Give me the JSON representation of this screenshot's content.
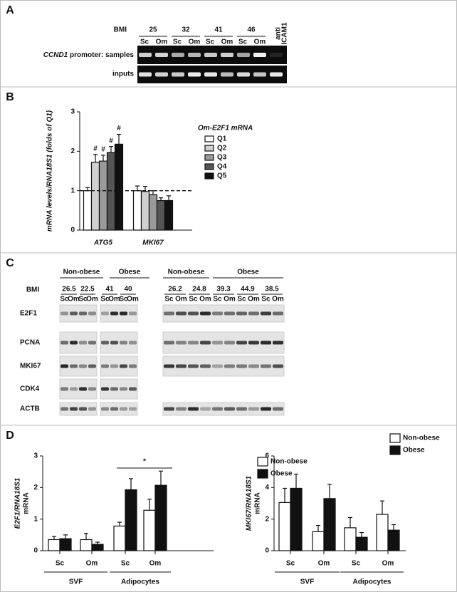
{
  "panel_a": {
    "label": "A",
    "bmi_label": "BMI",
    "bmi": [
      25,
      32,
      41,
      46
    ],
    "lanes": [
      "Sc",
      "Om",
      "Sc",
      "Om",
      "Sc",
      "Om",
      "Sc",
      "Om"
    ],
    "control": [
      "anti",
      "ICAM1"
    ],
    "row_gene": "CCND1",
    "row_label": " promoter: samples",
    "inputs": "inputs"
  },
  "panel_b_label": "B",
  "panel_c": {
    "label": "C",
    "groups_left": [
      "Non-obese",
      "Obese"
    ],
    "groups_right": [
      "Non-obese",
      "Obese"
    ],
    "bmi_label": "BMI",
    "bmi_left": [
      26.5,
      22.5,
      41,
      40
    ],
    "bmi_right": [
      26.2,
      24.8,
      39.3,
      44.9,
      38.5
    ],
    "lanes_left": [
      "Sc",
      "Om",
      "Sc",
      "Om",
      "Sc",
      "Om",
      "Sc",
      "Om"
    ],
    "lanes_right": [
      "Sc",
      "Om",
      "Sc",
      "Om",
      "Sc",
      "Om",
      "Sc",
      "Om",
      "Sc",
      "Om"
    ],
    "rows": [
      "E2F1",
      "PCNA",
      "MKI67",
      "CDK4",
      "ACTB"
    ]
  },
  "panel_d_label": "D",
  "chart_data": [
    {
      "type": "bar",
      "ylabel": "mRNA levels/RNA18S1 (folds of Q1)",
      "categories": [
        "ATG5",
        "MKI67"
      ],
      "series": [
        {
          "name": "Q1",
          "color": "#ffffff",
          "values": [
            1.0,
            1.0
          ],
          "errors": [
            0.08,
            0.12
          ]
        },
        {
          "name": "Q2",
          "color": "#d0d0d0",
          "values": [
            1.72,
            0.98
          ],
          "errors": [
            0.2,
            0.13
          ]
        },
        {
          "name": "Q3",
          "color": "#9a9a9a",
          "values": [
            1.75,
            0.9
          ],
          "errors": [
            0.15,
            0.1
          ]
        },
        {
          "name": "Q4",
          "color": "#555555",
          "values": [
            1.97,
            0.75
          ],
          "errors": [
            0.15,
            0.07
          ]
        },
        {
          "name": "Q5",
          "color": "#111111",
          "values": [
            2.18,
            0.75
          ],
          "errors": [
            0.25,
            0.12
          ]
        }
      ],
      "ylim": [
        0,
        3
      ],
      "yticks": [
        0,
        1,
        2,
        3
      ],
      "reference_line": 1,
      "legend_title": "Om-E2F1 mRNA",
      "annotations": [
        "#",
        "#",
        "#",
        "#"
      ]
    },
    {
      "type": "bar",
      "ylabel": [
        "E2F1/RNA18S1",
        "mRNA"
      ],
      "categories": [
        "Sc",
        "Om",
        "Sc",
        "Om"
      ],
      "groups": [
        "SVF",
        "Adipocytes"
      ],
      "series": [
        {
          "name": "Non-obese",
          "color": "#ffffff",
          "values": [
            0.35,
            0.35,
            0.78,
            1.28
          ],
          "errors": [
            0.1,
            0.2,
            0.12,
            0.35
          ]
        },
        {
          "name": "Obese",
          "color": "#111111",
          "values": [
            0.38,
            0.2,
            1.93,
            2.07
          ],
          "errors": [
            0.12,
            0.07,
            0.35,
            0.45
          ]
        }
      ],
      "ylim": [
        0,
        3
      ],
      "yticks": [
        0,
        1,
        2,
        3
      ],
      "annotation": "*"
    },
    {
      "type": "bar",
      "ylabel": [
        "MKI67/RNA18S1",
        "mRNA"
      ],
      "categories": [
        "Sc",
        "Om",
        "Sc",
        "Om"
      ],
      "groups": [
        "SVF",
        "Adipocytes"
      ],
      "series": [
        {
          "name": "Non-obese",
          "color": "#ffffff",
          "values": [
            3.05,
            1.2,
            1.45,
            2.3
          ],
          "errors": [
            0.9,
            0.4,
            0.65,
            0.85
          ]
        },
        {
          "name": "Obese",
          "color": "#111111",
          "values": [
            3.95,
            3.3,
            0.85,
            1.3
          ],
          "errors": [
            0.9,
            0.9,
            0.3,
            0.35
          ]
        }
      ],
      "ylim": [
        0,
        6
      ],
      "yticks": [
        0,
        2,
        4,
        6
      ]
    }
  ]
}
